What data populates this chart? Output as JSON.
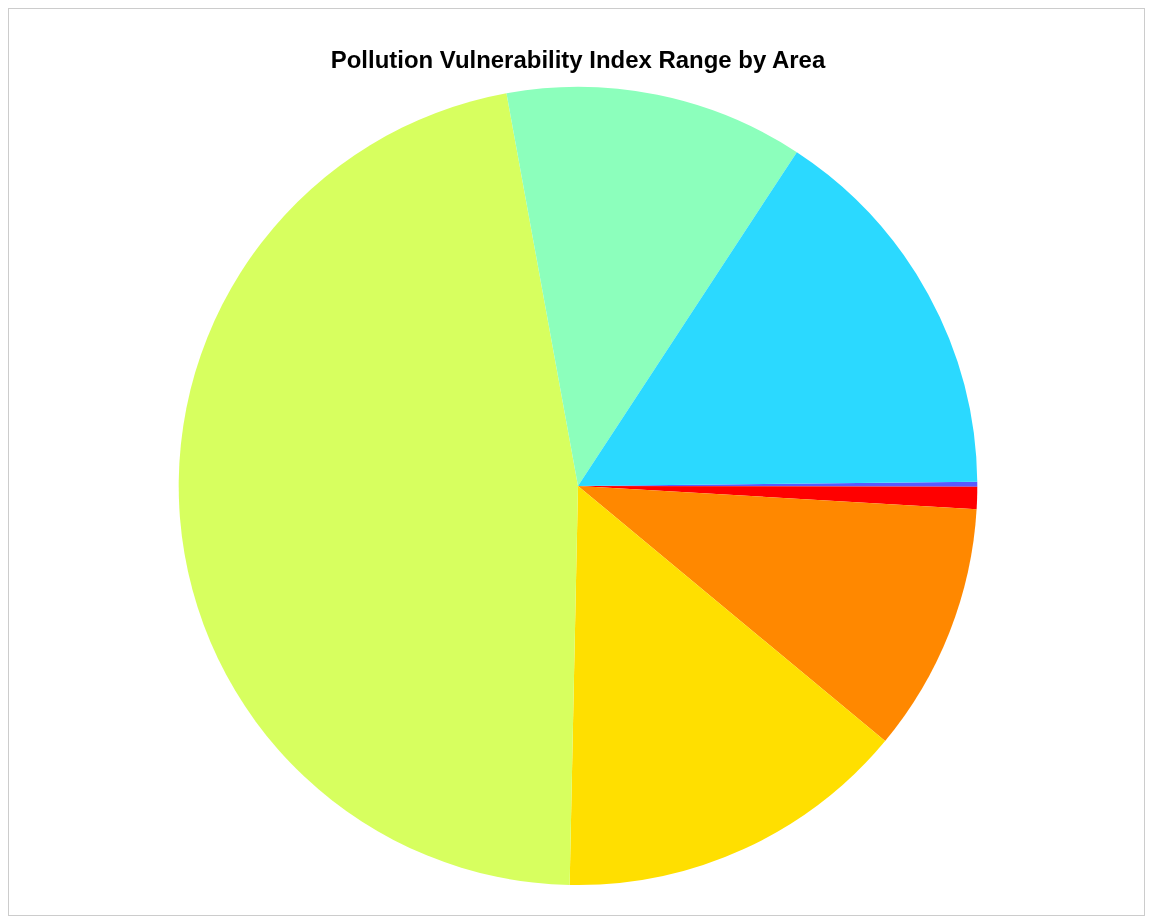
{
  "chart_data": {
    "type": "pie",
    "title": "Pollution Vulnerability Index Range by Area",
    "categories": [
      null,
      null,
      null,
      null,
      null,
      null,
      null
    ],
    "values": [
      0.2,
      0.9,
      10.1,
      14.3,
      46.8,
      12.1,
      15.6
    ],
    "colors": [
      "#5a5aff",
      "#ff0000",
      "#ff8800",
      "#ffdf00",
      "#d7ff5f",
      "#8cffbc",
      "#2bd9ff"
    ]
  }
}
